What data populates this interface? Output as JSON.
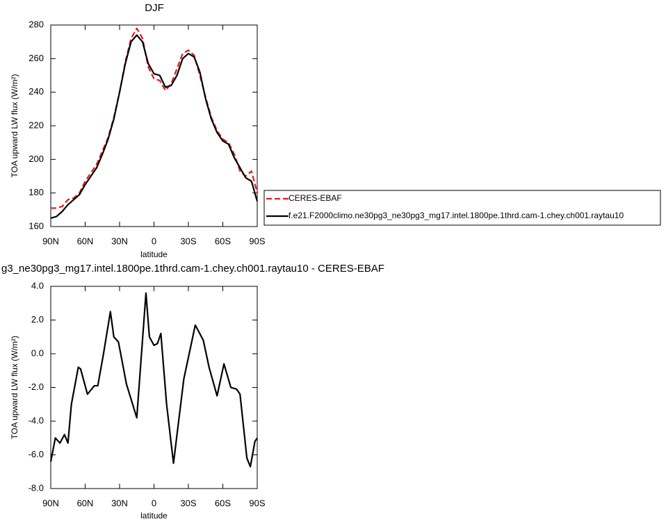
{
  "chart_data": [
    {
      "type": "line",
      "title": "DJF",
      "xlabel": "latitude",
      "ylabel": "TOA upward LW flux (W/m²)",
      "x": [
        90,
        85,
        80,
        75,
        70,
        65,
        60,
        55,
        50,
        45,
        40,
        35,
        30,
        25,
        20,
        15,
        10,
        5,
        0,
        -5,
        -10,
        -15,
        -20,
        -25,
        -30,
        -35,
        -40,
        -45,
        -50,
        -55,
        -60,
        -65,
        -70,
        -75,
        -80,
        -85,
        -90
      ],
      "xlim": [
        90,
        -90
      ],
      "xticks": [
        {
          "value": 90,
          "label": "90N"
        },
        {
          "value": 60,
          "label": "60N"
        },
        {
          "value": 30,
          "label": "30N"
        },
        0,
        {
          "value": -30,
          "label": "30S"
        },
        {
          "value": -60,
          "label": "60S"
        },
        {
          "value": -90,
          "label": "90S"
        }
      ],
      "ylim": [
        160,
        280
      ],
      "yticks": [
        160,
        180,
        200,
        220,
        240,
        260,
        280
      ],
      "legend": "right",
      "series": [
        {
          "name": "CERES-EBAF",
          "color": "#e41a1c",
          "style": "dashed",
          "values": [
            171,
            171,
            172,
            176,
            177,
            180,
            187,
            192,
            197,
            205,
            213,
            225,
            240,
            258,
            272,
            278,
            272,
            255,
            248,
            247,
            241,
            245,
            254,
            263,
            265,
            262,
            250,
            237,
            225,
            217,
            212,
            210,
            203,
            193,
            190,
            193,
            180
          ]
        },
        {
          "name": "f.e21.F2000climo.ne30pg3_ne30pg3_mg17.intel.1800pe.1thrd.cam-1.chey.ch001.raytau10",
          "color": "#000000",
          "style": "solid",
          "values": [
            165,
            166,
            169,
            173,
            176,
            179,
            185,
            190,
            195,
            203,
            212,
            224,
            240,
            257,
            270,
            274,
            270,
            257,
            251,
            250,
            243,
            244,
            250,
            260,
            263,
            261,
            252,
            236,
            224,
            216,
            211,
            209,
            201,
            195,
            189,
            187,
            175
          ]
        }
      ]
    },
    {
      "type": "line",
      "title": "g3_ne30pg3_mg17.intel.1800pe.1thrd.cam-1.chey.ch001.raytau10 - CERES-EBAF",
      "xlabel": "latitude",
      "ylabel": "TOA upward LW flux (W/m²)",
      "x": [
        90,
        86,
        82,
        78,
        75,
        72,
        66,
        64,
        58,
        52,
        49,
        44,
        38,
        35,
        31,
        24,
        15,
        7,
        4,
        0,
        -3,
        -6,
        -11,
        -17,
        -26,
        -36,
        -43,
        -48,
        -55,
        -61,
        -67,
        -72,
        -75,
        -81,
        -84,
        -88,
        -90
      ],
      "xlim": [
        90,
        -90
      ],
      "xticks": [
        {
          "value": 90,
          "label": "90N"
        },
        {
          "value": 60,
          "label": "60N"
        },
        {
          "value": 30,
          "label": "30N"
        },
        0,
        {
          "value": -30,
          "label": "30S"
        },
        {
          "value": -60,
          "label": "60S"
        },
        {
          "value": -90,
          "label": "90S"
        }
      ],
      "ylim": [
        -8,
        4
      ],
      "yticks": [
        {
          "value": -8,
          "label": "-8.0"
        },
        {
          "value": -6,
          "label": "-6.0"
        },
        {
          "value": -4,
          "label": "-4.0"
        },
        {
          "value": -2,
          "label": "-2.0"
        },
        {
          "value": 0,
          "label": "0.0"
        },
        {
          "value": 2,
          "label": "2.0"
        },
        {
          "value": 4,
          "label": "4.0"
        }
      ],
      "series": [
        {
          "color": "#000000",
          "style": "solid",
          "values": [
            -6.4,
            -5.0,
            -5.3,
            -4.8,
            -5.3,
            -3.0,
            -0.8,
            -0.9,
            -2.4,
            -1.9,
            -1.9,
            0.0,
            2.5,
            1.0,
            0.7,
            -1.8,
            -3.8,
            3.6,
            1.0,
            0.5,
            0.6,
            1.2,
            -3.0,
            -6.5,
            -1.5,
            1.7,
            0.8,
            -0.8,
            -2.5,
            -0.6,
            -2.0,
            -2.1,
            -2.4,
            -6.2,
            -6.7,
            -5.2,
            -5.0
          ]
        }
      ]
    }
  ]
}
